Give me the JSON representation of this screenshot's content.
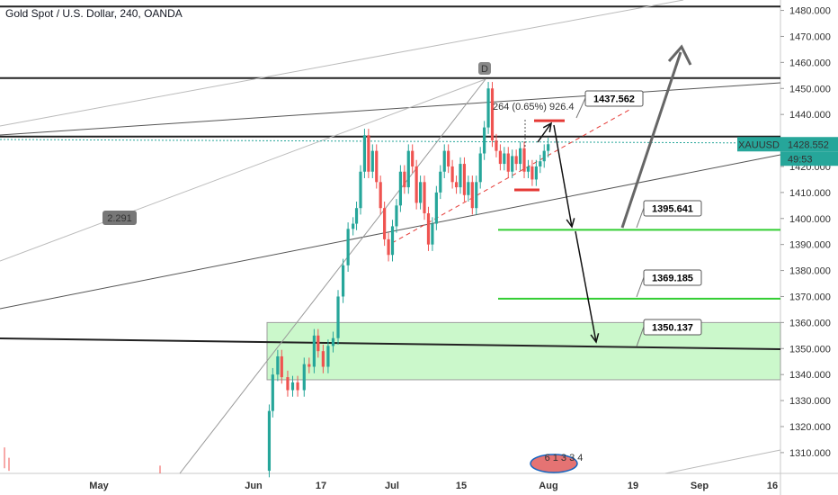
{
  "header": {
    "title": "Gold Spot / U.S. Dollar, 240, OANDA"
  },
  "chart_data": {
    "type": "candlestick",
    "title": "Gold Spot / U.S. Dollar, 240, OANDA",
    "y_axis": {
      "ticks": [
        1310,
        1320,
        1330,
        1340,
        1350,
        1360,
        1370,
        1380,
        1390,
        1400,
        1410,
        1420,
        1430,
        1440,
        1450,
        1460,
        1470,
        1480
      ],
      "range": [
        1302,
        1484
      ],
      "format_suffix": ".000"
    },
    "x_axis": {
      "labels": [
        "May",
        "Jun",
        "17",
        "Jul",
        "15",
        "Aug",
        "19",
        "Sep",
        "16"
      ]
    },
    "symbol": {
      "name": "XAUUSD",
      "price": "1428.552",
      "countdown": "49:53",
      "color": "#26a69a"
    },
    "price_path": [
      [
        "Jun",
        1303
      ],
      [
        3.5,
        1326
      ],
      [
        4.2,
        1340
      ],
      [
        5.2,
        1347
      ],
      [
        6.0,
        1339
      ],
      [
        7.2,
        1334
      ],
      [
        8.2,
        1337
      ],
      [
        9.2,
        1334
      ],
      [
        10.5,
        1344
      ],
      [
        11.5,
        1343
      ],
      [
        12.5,
        1355
      ],
      [
        13.3,
        1349
      ],
      [
        14.3,
        1343
      ],
      [
        15.3,
        1351
      ],
      [
        16.3,
        1354
      ],
      [
        17.3,
        1370
      ],
      [
        18.3,
        1382
      ],
      [
        19.3,
        1396
      ],
      [
        20.3,
        1398
      ],
      [
        21.0,
        1404
      ],
      [
        21.8,
        1418
      ],
      [
        22.6,
        1432
      ],
      [
        23.4,
        1418
      ],
      [
        24.2,
        1426
      ],
      [
        25.0,
        1414
      ],
      [
        25.8,
        1404
      ],
      [
        26.6,
        1392
      ],
      [
        27.4,
        1386
      ],
      [
        28.2,
        1397
      ],
      [
        29.0,
        1405
      ],
      [
        29.8,
        1418
      ],
      [
        30.6,
        1412
      ],
      [
        31.4,
        1426
      ],
      [
        32.2,
        1420
      ],
      [
        33.0,
        1406
      ],
      [
        33.8,
        1414
      ],
      [
        34.6,
        1402
      ],
      [
        35.4,
        1390
      ],
      [
        36.2,
        1398
      ],
      [
        37.0,
        1410
      ],
      [
        37.8,
        1418
      ],
      [
        38.6,
        1426
      ],
      [
        39.4,
        1420
      ],
      [
        40.2,
        1414
      ],
      [
        41.0,
        1412
      ],
      [
        41.8,
        1421
      ],
      [
        42.6,
        1409
      ],
      [
        43.4,
        1414
      ],
      [
        44.2,
        1404
      ],
      [
        45.0,
        1414
      ],
      [
        45.8,
        1425
      ],
      [
        46.6,
        1435
      ],
      [
        47.4,
        1450
      ],
      [
        48.2,
        1430
      ],
      [
        49.0,
        1426
      ],
      [
        49.8,
        1421
      ],
      [
        50.6,
        1425
      ],
      [
        51.4,
        1418
      ],
      [
        52.2,
        1424
      ],
      [
        53.0,
        1421
      ],
      [
        53.8,
        1427
      ],
      [
        54.6,
        1418
      ],
      [
        55.4,
        1420
      ],
      [
        56.2,
        1415
      ],
      [
        57.0,
        1420
      ],
      [
        57.8,
        1422
      ],
      [
        58.6,
        1426
      ],
      [
        59.4,
        1428.552
      ]
    ],
    "support_resistance": [
      {
        "label": "1437.562",
        "value": 1437.562
      },
      {
        "label": "1395.641",
        "value": 1395.641
      },
      {
        "label": "1369.185",
        "value": 1369.185
      },
      {
        "label": "1350.137",
        "value": 1350.137
      }
    ],
    "zone": {
      "from": 1338,
      "to": 1360,
      "color": "#b9f6b9"
    },
    "annotations": {
      "measure": "264 (0.65%) 926.4",
      "angle": "2.291",
      "pattern_point": "D",
      "volume_badge": "6 1 3 3 4"
    }
  }
}
